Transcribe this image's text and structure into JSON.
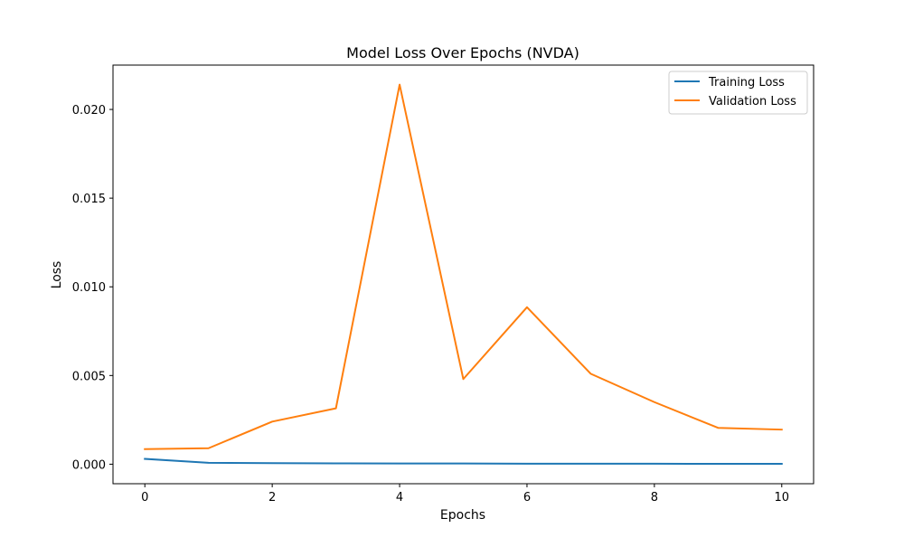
{
  "chart_data": {
    "type": "line",
    "title": "Model Loss Over Epochs (NVDA)",
    "xlabel": "Epochs",
    "ylabel": "Loss",
    "x": [
      0,
      1,
      2,
      3,
      4,
      5,
      6,
      7,
      8,
      9,
      10
    ],
    "xlim": [
      -0.5,
      10.5
    ],
    "ylim": [
      -0.0011,
      0.0225
    ],
    "xticks": [
      0,
      2,
      4,
      6,
      8,
      10
    ],
    "xtick_labels": [
      "0",
      "2",
      "4",
      "6",
      "8",
      "10"
    ],
    "yticks": [
      0.0,
      0.005,
      0.01,
      0.015,
      0.02
    ],
    "ytick_labels": [
      "0.000",
      "0.005",
      "0.010",
      "0.015",
      "0.020"
    ],
    "grid": false,
    "legend_position": "top-right",
    "series": [
      {
        "name": "Training Loss",
        "color": "#1f77b4",
        "values": [
          0.0003,
          8e-05,
          6e-05,
          5e-05,
          4e-05,
          4e-05,
          3e-05,
          3e-05,
          3e-05,
          2e-05,
          2e-05
        ]
      },
      {
        "name": "Validation Loss",
        "color": "#ff7f0e",
        "values": [
          0.00085,
          0.0009,
          0.0024,
          0.00315,
          0.0214,
          0.0048,
          0.00885,
          0.0051,
          0.0035,
          0.00205,
          0.00195
        ]
      }
    ]
  }
}
